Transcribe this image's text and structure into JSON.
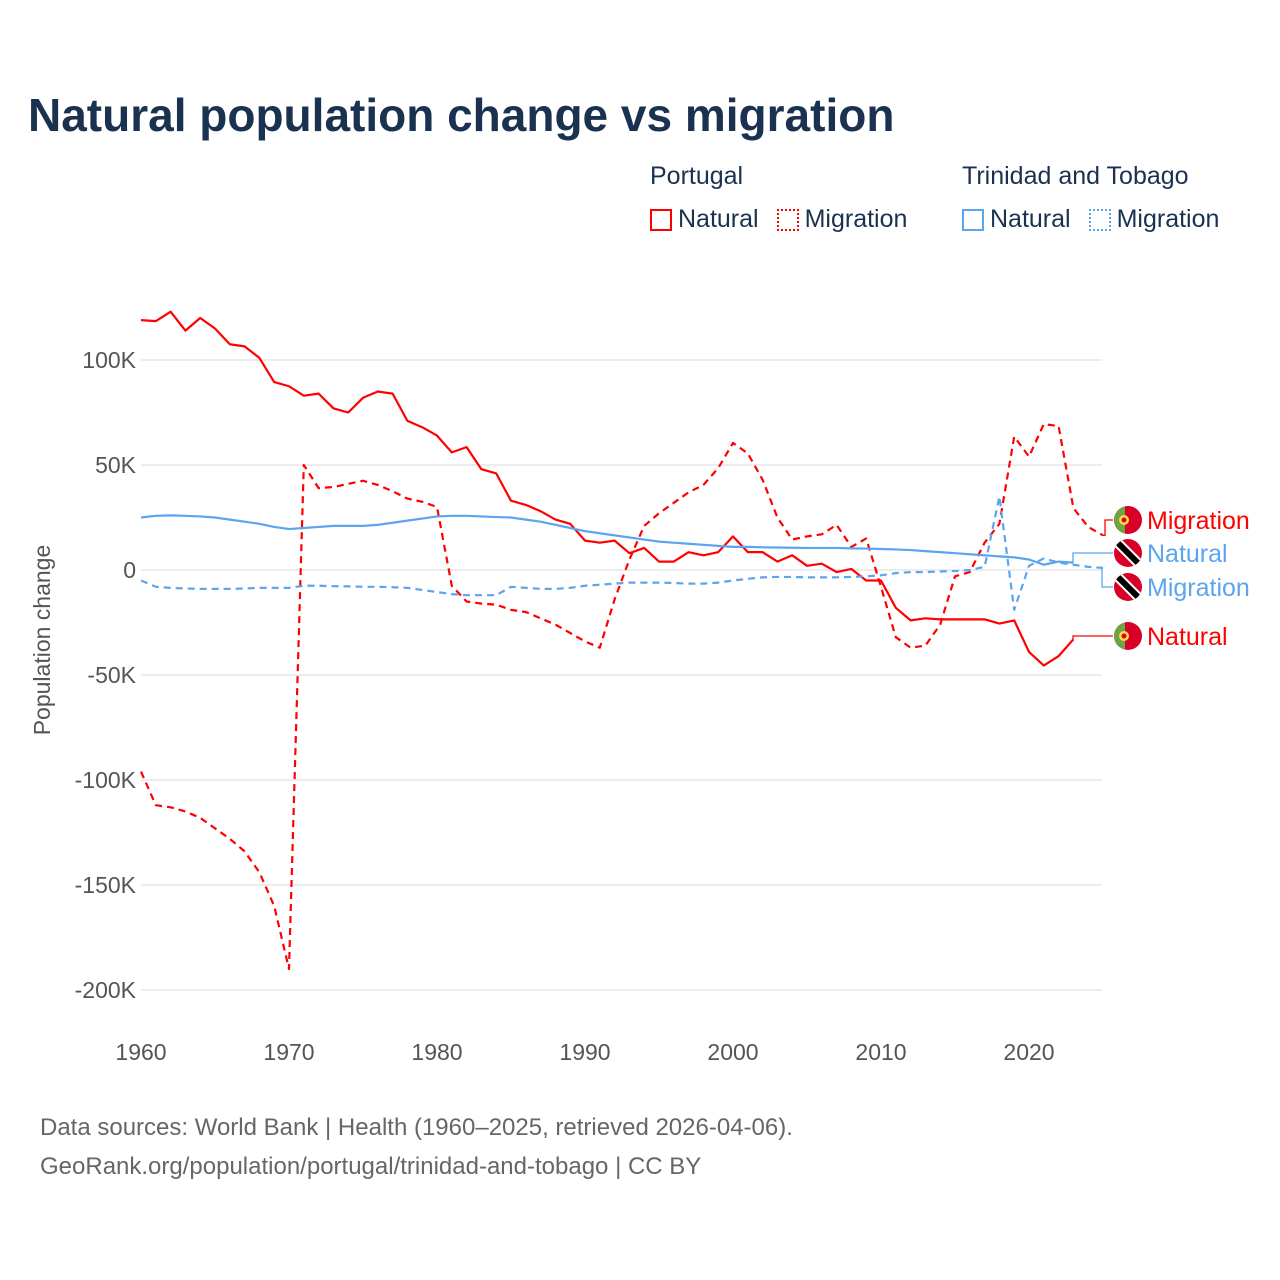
{
  "title": "Natural population change vs migration",
  "legend": {
    "groups": [
      {
        "name": "Portugal",
        "items": [
          "Natural",
          "Migration"
        ],
        "color": "#ff0000"
      },
      {
        "name": "Trinidad and Tobago",
        "items": [
          "Natural",
          "Migration"
        ],
        "color": "#5ba4ee"
      }
    ]
  },
  "footer": {
    "line1": "Data sources: World Bank | Health (1960–2025, retrieved 2026-04-06).",
    "line2": "GeoRank.org/population/portugal/trinidad-and-tobago | CC BY"
  },
  "chart_data": {
    "type": "line",
    "title": "Natural population change vs migration",
    "xlabel": "",
    "ylabel": "Population change",
    "xlim": [
      1960,
      2025
    ],
    "ylim": [
      -200000,
      120000
    ],
    "x_ticks": [
      "1960",
      "1970",
      "1980",
      "1990",
      "2000",
      "2010",
      "2020"
    ],
    "y_ticks": [
      {
        "value": 100000,
        "label": "100K"
      },
      {
        "value": 50000,
        "label": "50K"
      },
      {
        "value": 0,
        "label": "0"
      },
      {
        "value": -50000,
        "label": "-50K"
      },
      {
        "value": -100000,
        "label": "-100K"
      },
      {
        "value": -150000,
        "label": "-150K"
      },
      {
        "value": -200000,
        "label": "-200K"
      }
    ],
    "grid": true,
    "x_start": 1960,
    "unit": "thousands",
    "series": [
      {
        "name": "Portugal Natural",
        "label": "Natural",
        "color": "#ff0000",
        "dash": false,
        "flag": "portugal",
        "values": [
          119,
          118.5,
          123,
          114,
          120,
          115,
          107.5,
          106.5,
          101,
          89.5,
          87.5,
          83,
          84,
          77,
          75,
          82,
          85,
          84,
          71,
          68,
          64,
          56,
          58.5,
          48,
          46,
          33,
          31,
          28,
          24,
          22,
          14,
          13,
          14,
          8,
          10.5,
          4,
          4,
          8.5,
          7,
          8.5,
          16,
          8.5,
          8.5,
          4,
          7,
          2,
          3,
          -1,
          0.5,
          -5,
          -5,
          -18,
          -24,
          -23,
          -23.5,
          -23.5,
          -23.5,
          -23.5,
          -25.5,
          -24,
          -39,
          -45.5,
          -41,
          -33,
          null,
          null
        ]
      },
      {
        "name": "Portugal Migration",
        "label": "Migration",
        "color": "#ff0000",
        "dash": true,
        "flag": "portugal",
        "values": [
          -96,
          -112,
          -113,
          -115,
          -118,
          -123,
          -128,
          -134,
          -144,
          -160,
          -190,
          50,
          39,
          39.5,
          41,
          42.5,
          40.5,
          37.5,
          34,
          32.5,
          30,
          -7.5,
          -15,
          -16,
          -16.5,
          -19,
          -20,
          -23,
          -26,
          -30,
          -34,
          -37,
          -14,
          5,
          21,
          27,
          32,
          37,
          40.5,
          48.5,
          60.5,
          55.5,
          43,
          25,
          14.5,
          16,
          17,
          21.5,
          11,
          15,
          -8,
          -32,
          -37,
          -36,
          -26,
          -3,
          -1,
          13,
          22,
          63.5,
          54,
          69.5,
          68.5,
          29.5,
          20.5,
          16.5
        ]
      },
      {
        "name": "Trinidad and Tobago Natural",
        "label": "Natural",
        "color": "#5ba4ee",
        "dash": false,
        "flag": "trinidad",
        "values": [
          25,
          25.8,
          26,
          25.8,
          25.5,
          25,
          24,
          23,
          22,
          20.5,
          19.5,
          20,
          20.5,
          21,
          21,
          21,
          21.5,
          22.5,
          23.5,
          24.5,
          25.5,
          25.8,
          25.8,
          25.5,
          25.2,
          25,
          24,
          23,
          21.5,
          20,
          18.5,
          17.5,
          16.5,
          15.5,
          14.5,
          13.5,
          13,
          12.5,
          12,
          11.5,
          11,
          11,
          10.8,
          10.7,
          10.6,
          10.5,
          10.5,
          10.5,
          10.3,
          10.2,
          10,
          9.8,
          9.5,
          9,
          8.5,
          8,
          7.5,
          7,
          6.5,
          6,
          5,
          2.5,
          4,
          3.5,
          null,
          null
        ]
      },
      {
        "name": "Trinidad and Tobago Migration",
        "label": "Migration",
        "color": "#5ba4ee",
        "dash": true,
        "flag": "trinidad",
        "values": [
          -5,
          -8,
          -8.5,
          -8.8,
          -9,
          -9,
          -9,
          -8.8,
          -8.5,
          -8.5,
          -8.5,
          -7.5,
          -7.5,
          -7.7,
          -7.8,
          -8,
          -8,
          -8.2,
          -8.5,
          -9.5,
          -10.5,
          -11.5,
          -12,
          -12,
          -12,
          -8,
          -8.5,
          -9,
          -9,
          -8.5,
          -7.5,
          -7,
          -6.5,
          -6,
          -6,
          -6,
          -6.2,
          -6.5,
          -6.5,
          -6,
          -5,
          -4.2,
          -3.5,
          -3.3,
          -3.3,
          -3.5,
          -3.5,
          -3.5,
          -3.3,
          -3,
          -2.5,
          -1.5,
          -1,
          -1,
          -0.7,
          -0.5,
          0,
          1.5,
          35,
          -19,
          2,
          5.5,
          3.5,
          2.5,
          1.5,
          1
        ]
      }
    ]
  }
}
